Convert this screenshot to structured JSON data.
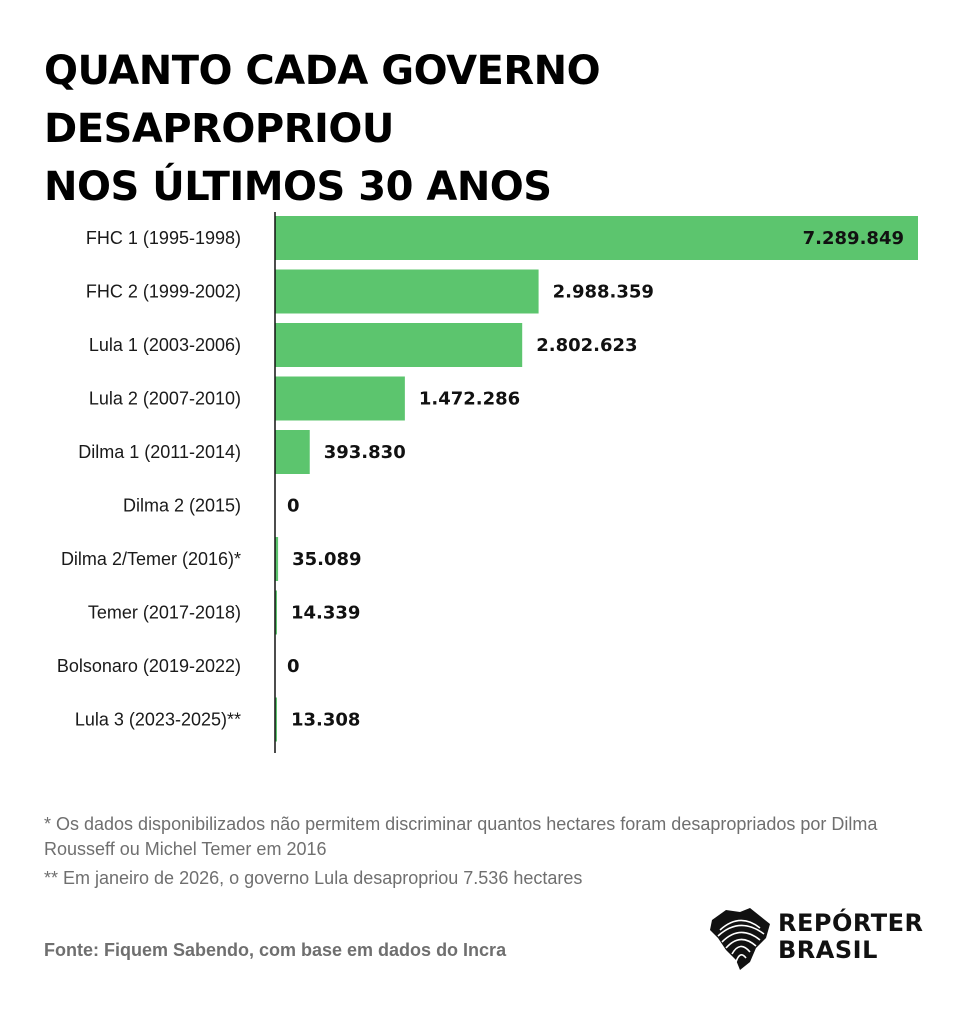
{
  "title": {
    "line1": "QUANTO CADA GOVERNO DESAPROPRIOU",
    "line2": "NOS ÚLTIMOS 30 ANOS"
  },
  "chart_data": {
    "type": "bar",
    "orientation": "horizontal",
    "title": "QUANTO CADA GOVERNO DESAPROPRIOU NOS ÚLTIMOS 30 ANOS",
    "xlabel": "",
    "ylabel": "",
    "unit": "hectares",
    "grid": false,
    "bar_color": "#5CC56E",
    "categories": [
      "FHC 1 (1995-1998)",
      "FHC 2 (1999-2002)",
      "Lula 1 (2003-2006)",
      "Lula 2 (2007-2010)",
      "Dilma 1 (2011-2014)",
      "Dilma 2 (2015)",
      "Dilma 2/Temer (2016)*",
      "Temer (2017-2018)",
      "Bolsonaro (2019-2022)",
      "Lula 3 (2023-2025)**"
    ],
    "values": [
      7289849,
      2988359,
      2802623,
      1472286,
      393830,
      0,
      35089,
      14339,
      0,
      13308
    ],
    "value_labels": [
      "7.289.849",
      "2.988.359",
      "2.802.623",
      "1.472.286",
      "393.830",
      "0",
      "35.089",
      "14.339",
      "0",
      "13.308"
    ],
    "xlim": [
      0,
      7289849
    ]
  },
  "notes": {
    "note1": "* Os dados disponibilizados não permitem discriminar quantos hectares foram desapropriados por Dilma Rousseff ou Michel Temer em 2016",
    "note2": "** Em janeiro de 2026, o governo Lula desapropriou 7.536 hectares"
  },
  "source": "Fonte: Fiquem Sabendo, com base em dados do Incra",
  "logo": {
    "line1": "REPÓRTER",
    "line2": "BRASIL",
    "icon": "fingerprint-brazil-map-icon"
  }
}
